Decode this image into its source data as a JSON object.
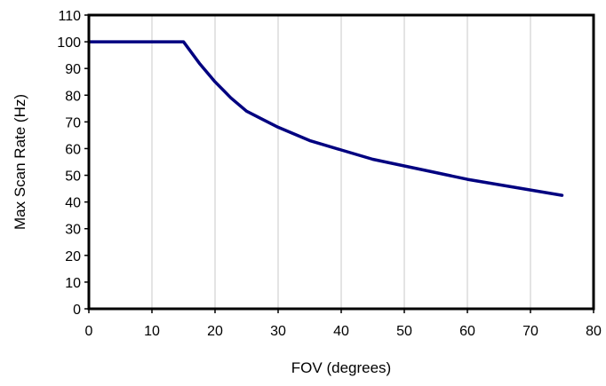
{
  "chart_data": {
    "type": "line",
    "title": "",
    "xlabel": "FOV (degrees)",
    "ylabel": "Max Scan Rate (Hz)",
    "xlim": [
      0,
      80
    ],
    "ylim": [
      0,
      110
    ],
    "x_ticks": [
      0,
      10,
      20,
      30,
      40,
      50,
      60,
      70,
      80
    ],
    "y_ticks": [
      0,
      10,
      20,
      30,
      40,
      50,
      60,
      70,
      80,
      90,
      100,
      110
    ],
    "grid": "vertical gridlines",
    "legend": "none",
    "series": [
      {
        "color": "#000080",
        "x": [
          0,
          5,
          10,
          15,
          17.5,
          20,
          22.5,
          25,
          27.5,
          30,
          35,
          40,
          45,
          50,
          55,
          60,
          65,
          70,
          75
        ],
        "y": [
          100,
          100,
          100,
          100,
          92,
          85,
          79,
          74,
          71,
          68,
          63,
          59.5,
          56,
          53.5,
          51,
          48.5,
          46.5,
          44.5,
          42.5
        ]
      }
    ]
  }
}
